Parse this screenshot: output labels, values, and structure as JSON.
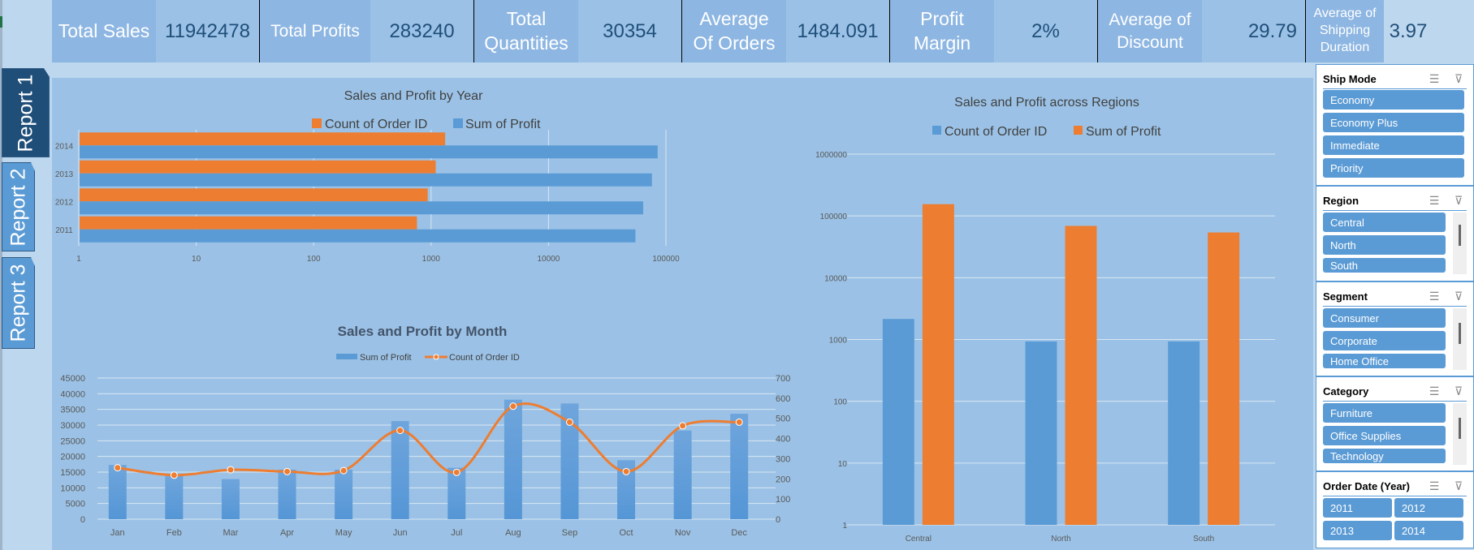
{
  "kpis": [
    {
      "label": "Total Sales",
      "value": "11942478"
    },
    {
      "label": "Total Profits",
      "value": "283240"
    },
    {
      "label": "Total Quantities",
      "value": "30354"
    },
    {
      "label": "Average Of Orders",
      "value": "1484.091"
    },
    {
      "label": "Profit Margin",
      "value": "2%"
    },
    {
      "label": "Average of Discount",
      "value": "29.79"
    },
    {
      "label": "Average of Shipping Duration",
      "value": "3.97"
    }
  ],
  "tabs": [
    {
      "label": "Report 1",
      "active": true
    },
    {
      "label": "Report 2",
      "active": false
    },
    {
      "label": "Report 3",
      "active": false
    }
  ],
  "colors": {
    "blue": "#5b9bd5",
    "orange": "#ed7d31",
    "panel": "#9bc2e6",
    "dark": "#1f4e79"
  },
  "chart_data": [
    {
      "id": "year",
      "type": "bar",
      "orientation": "horizontal",
      "title": "Sales and Profit by Year",
      "categories": [
        "2014",
        "2013",
        "2012",
        "2011"
      ],
      "series": [
        {
          "name": "Count of Order ID",
          "color": "#ed7d31",
          "values": [
            1318,
            1095,
            936,
            758
          ]
        },
        {
          "name": "Sum of Profit",
          "color": "#5b9bd5",
          "values": [
            85000,
            76000,
            64000,
            55000
          ]
        }
      ],
      "xscale": "log",
      "xlim": [
        1,
        100000
      ],
      "xticks": [
        "1",
        "10",
        "100",
        "1000",
        "10000",
        "100000"
      ],
      "legend": "top",
      "grid": true
    },
    {
      "id": "month",
      "type": "bar+line",
      "title": "Sales and Profit by Month",
      "categories": [
        "Jan",
        "Feb",
        "Mar",
        "Apr",
        "May",
        "Jun",
        "Jul",
        "Aug",
        "Sep",
        "Oct",
        "Nov",
        "Dec"
      ],
      "series": [
        {
          "name": "Sum of Profit",
          "type": "bar",
          "axis": "left",
          "color": "#5b9bd5",
          "values": [
            17300,
            13700,
            12800,
            15800,
            15800,
            31300,
            16400,
            38100,
            36900,
            18800,
            28300,
            33600
          ]
        },
        {
          "name": "Count of Order ID",
          "type": "line",
          "axis": "right",
          "color": "#ed7d31",
          "values": [
            255,
            218,
            245,
            236,
            241,
            440,
            232,
            560,
            481,
            236,
            463,
            481
          ]
        }
      ],
      "ylim": [
        0,
        45000
      ],
      "yticks": [
        "0",
        "5000",
        "10000",
        "15000",
        "20000",
        "25000",
        "30000",
        "35000",
        "40000",
        "45000"
      ],
      "y2lim": [
        0,
        700
      ],
      "y2ticks": [
        "0",
        "100",
        "200",
        "300",
        "400",
        "500",
        "600",
        "700"
      ],
      "legend": "top",
      "grid": true
    },
    {
      "id": "region",
      "type": "bar",
      "title": "Sales and Profit across Regions",
      "categories": [
        "Central",
        "North",
        "South"
      ],
      "series": [
        {
          "name": "Count of Order ID",
          "color": "#5b9bd5",
          "values": [
            2150,
            930,
            930
          ]
        },
        {
          "name": "Sum of Profit",
          "color": "#ed7d31",
          "values": [
            155000,
            69000,
            54000
          ]
        }
      ],
      "yscale": "log",
      "ylim": [
        1,
        1000000
      ],
      "yticks": [
        "1",
        "10",
        "100",
        "1000",
        "10000",
        "100000",
        "1000000"
      ],
      "legend": "top",
      "grid": true
    }
  ],
  "slicers": [
    {
      "title": "Ship Mode",
      "items": [
        "Economy",
        "Economy Plus",
        "Immediate",
        "Priority"
      ]
    },
    {
      "title": "Region",
      "items": [
        "Central",
        "North",
        "South"
      ]
    },
    {
      "title": "Segment",
      "items": [
        "Consumer",
        "Corporate",
        "Home Office"
      ]
    },
    {
      "title": "Category",
      "items": [
        "Furniture",
        "Office Supplies",
        "Technology"
      ]
    },
    {
      "title": "Order Date (Year)",
      "items": [
        "2011",
        "2012",
        "2013",
        "2014"
      ]
    }
  ],
  "icons": {
    "multi_select": "multi-select-icon",
    "clear_filter": "clear-filter-icon"
  }
}
